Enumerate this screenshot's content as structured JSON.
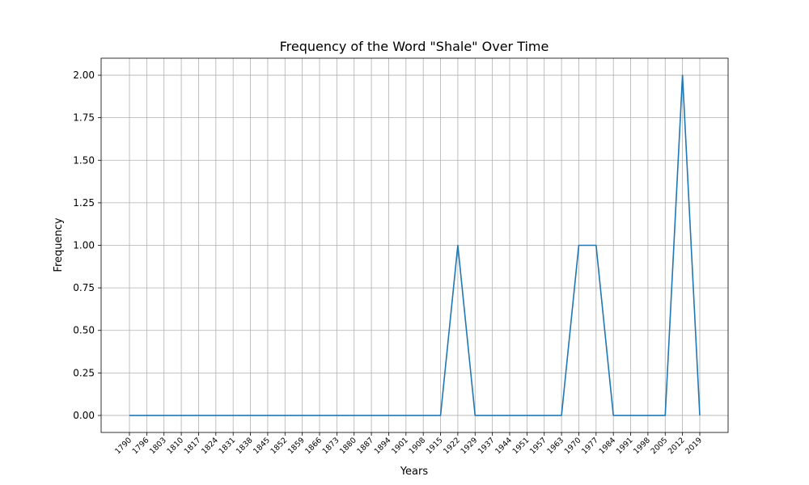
{
  "chart_data": {
    "type": "line",
    "title": "Frequency of the Word \"Shale\" Over Time",
    "xlabel": "Years",
    "ylabel": "Frequency",
    "x": [
      1790,
      1796,
      1803,
      1810,
      1817,
      1824,
      1831,
      1838,
      1845,
      1852,
      1859,
      1866,
      1873,
      1880,
      1887,
      1894,
      1901,
      1908,
      1915,
      1922,
      1929,
      1937,
      1944,
      1951,
      1957,
      1963,
      1970,
      1977,
      1984,
      1991,
      1998,
      2005,
      2012,
      2019
    ],
    "x_tick_labels": [
      "1790",
      "1796",
      "1803",
      "1810",
      "1817",
      "1824",
      "1831",
      "1838",
      "1845",
      "1852",
      "1859",
      "1866",
      "1873",
      "1880",
      "1887",
      "1894",
      "1901",
      "1908",
      "1915",
      "1922",
      "1929",
      "1937",
      "1944",
      "1951",
      "1957",
      "1963",
      "1970",
      "1977",
      "1984",
      "1991",
      "1998",
      "2005",
      "2012",
      "2019"
    ],
    "series": [
      {
        "values": [
          0,
          0,
          0,
          0,
          0,
          0,
          0,
          0,
          0,
          0,
          0,
          0,
          0,
          0,
          0,
          0,
          0,
          0,
          0,
          1,
          0,
          0,
          0,
          0,
          0,
          0,
          1,
          1,
          0,
          0,
          0,
          0,
          2,
          0
        ],
        "color": "#1f77b4"
      }
    ],
    "y_ticks": [
      0.0,
      0.25,
      0.5,
      0.75,
      1.0,
      1.25,
      1.5,
      1.75,
      2.0
    ],
    "y_tick_labels": [
      "0.00",
      "0.25",
      "0.50",
      "0.75",
      "1.00",
      "1.25",
      "1.50",
      "1.75",
      "2.00"
    ],
    "ylim": [
      -0.1,
      2.1
    ],
    "grid": true,
    "x_tick_rotation": 45
  }
}
